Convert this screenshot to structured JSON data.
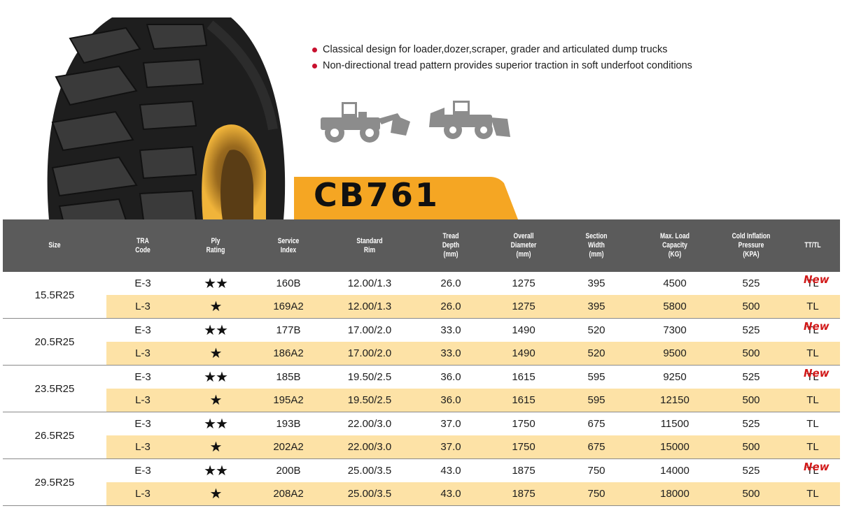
{
  "product": {
    "model": "CB761",
    "features": [
      "Classical design for loader,dozer,scraper, grader and articulated dump trucks",
      "Non-directional tread pattern provides superior traction in soft underfoot conditions"
    ],
    "accent_color": "#f5a623",
    "bullet_color": "#c8102e",
    "icons": [
      "tire-image",
      "wheel-loader-icon",
      "wheel-dozer-icon"
    ]
  },
  "table": {
    "headers": [
      "Size",
      "TRA\nCode",
      "Ply\nRating",
      "Service\nIndex",
      "Standard\nRim",
      "Tread\nDepth\n(mm)",
      "Overall\nDiameter\n(mm)",
      "Section\nWidth\n(mm)",
      "Max. Load\nCapacity\n(KG)",
      "Cold Inflation\nPressure\n(KPA)",
      "TT/TL"
    ],
    "new_label": "New",
    "groups": [
      {
        "size": "15.5R25",
        "rows": [
          {
            "tra": "E-3",
            "ply": "★★",
            "service": "160B",
            "rim": "12.00/1.3",
            "tread": "26.0",
            "diameter": "1275",
            "width": "395",
            "load": "4500",
            "pressure": "525",
            "tttl": "TL",
            "new": true
          },
          {
            "tra": "L-3",
            "ply": "★",
            "service": "169A2",
            "rim": "12.00/1.3",
            "tread": "26.0",
            "diameter": "1275",
            "width": "395",
            "load": "5800",
            "pressure": "500",
            "tttl": "TL",
            "new": false
          }
        ]
      },
      {
        "size": "20.5R25",
        "rows": [
          {
            "tra": "E-3",
            "ply": "★★",
            "service": "177B",
            "rim": "17.00/2.0",
            "tread": "33.0",
            "diameter": "1490",
            "width": "520",
            "load": "7300",
            "pressure": "525",
            "tttl": "TL",
            "new": true
          },
          {
            "tra": "L-3",
            "ply": "★",
            "service": "186A2",
            "rim": "17.00/2.0",
            "tread": "33.0",
            "diameter": "1490",
            "width": "520",
            "load": "9500",
            "pressure": "500",
            "tttl": "TL",
            "new": false
          }
        ]
      },
      {
        "size": "23.5R25",
        "rows": [
          {
            "tra": "E-3",
            "ply": "★★",
            "service": "185B",
            "rim": "19.50/2.5",
            "tread": "36.0",
            "diameter": "1615",
            "width": "595",
            "load": "9250",
            "pressure": "525",
            "tttl": "TL",
            "new": true
          },
          {
            "tra": "L-3",
            "ply": "★",
            "service": "195A2",
            "rim": "19.50/2.5",
            "tread": "36.0",
            "diameter": "1615",
            "width": "595",
            "load": "12150",
            "pressure": "500",
            "tttl": "TL",
            "new": false
          }
        ]
      },
      {
        "size": "26.5R25",
        "rows": [
          {
            "tra": "E-3",
            "ply": "★★",
            "service": "193B",
            "rim": "22.00/3.0",
            "tread": "37.0",
            "diameter": "1750",
            "width": "675",
            "load": "11500",
            "pressure": "525",
            "tttl": "TL",
            "new": false
          },
          {
            "tra": "L-3",
            "ply": "★",
            "service": "202A2",
            "rim": "22.00/3.0",
            "tread": "37.0",
            "diameter": "1750",
            "width": "675",
            "load": "15000",
            "pressure": "500",
            "tttl": "TL",
            "new": false
          }
        ]
      },
      {
        "size": "29.5R25",
        "rows": [
          {
            "tra": "E-3",
            "ply": "★★",
            "service": "200B",
            "rim": "25.00/3.5",
            "tread": "43.0",
            "diameter": "1875",
            "width": "750",
            "load": "14000",
            "pressure": "525",
            "tttl": "TL",
            "new": true
          },
          {
            "tra": "L-3",
            "ply": "★",
            "service": "208A2",
            "rim": "25.00/3.5",
            "tread": "43.0",
            "diameter": "1875",
            "width": "750",
            "load": "18000",
            "pressure": "500",
            "tttl": "TL",
            "new": false
          }
        ]
      }
    ]
  }
}
